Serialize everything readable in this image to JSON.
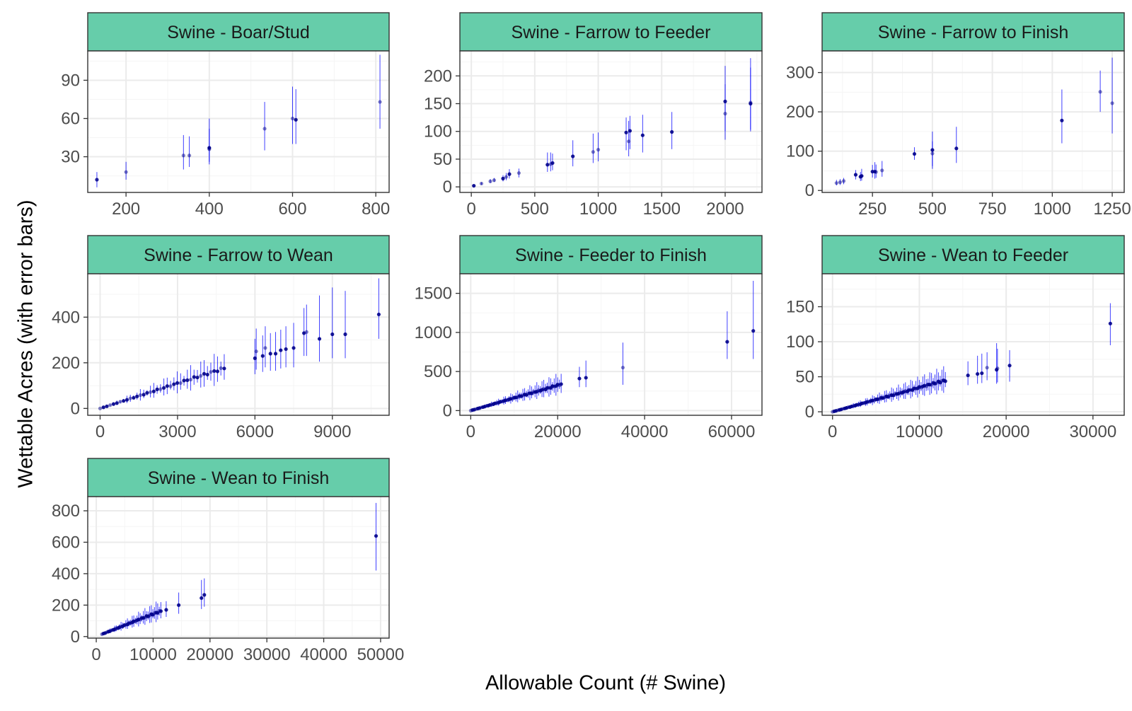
{
  "figure": {
    "x_title": "Allowable Count (# Swine)",
    "y_title": "Wettable Acres (with error bars)"
  },
  "colors": {
    "strip_fill": "#66CDAA",
    "point": "#00008B",
    "errorbar": "#0000FF",
    "panel_border": "#333333",
    "grid_major": "#EBEBEB",
    "grid_minor": "#F5F5F5",
    "tick_text": "#4D4D4D"
  },
  "chart_data": [
    {
      "type": "scatter",
      "title": "Swine - Boar/Stud",
      "xlim": [
        108,
        832
      ],
      "ylim": [
        2,
        113
      ],
      "xticks": [
        200,
        400,
        600,
        800
      ],
      "xtick_labels": [
        "200",
        "400",
        "600",
        "800"
      ],
      "yticks": [
        30,
        60,
        90
      ],
      "ytick_labels": [
        "30",
        "60",
        "90"
      ],
      "points": [
        {
          "x": 130,
          "y": 12,
          "lo": 6,
          "hi": 18,
          "a": 0.85
        },
        {
          "x": 200,
          "y": 18,
          "lo": 12,
          "hi": 26,
          "a": 0.5
        },
        {
          "x": 338,
          "y": 31,
          "lo": 20,
          "hi": 47,
          "a": 0.5
        },
        {
          "x": 352,
          "y": 31,
          "lo": 22,
          "hi": 46,
          "a": 0.5
        },
        {
          "x": 400,
          "y": 37,
          "lo": 24,
          "hi": 60,
          "a": 0.95
        },
        {
          "x": 400,
          "y": 36,
          "lo": 26,
          "hi": 52,
          "a": 0.6
        },
        {
          "x": 533,
          "y": 52,
          "lo": 35,
          "hi": 73,
          "a": 0.5
        },
        {
          "x": 600,
          "y": 60,
          "lo": 40,
          "hi": 85,
          "a": 0.5
        },
        {
          "x": 608,
          "y": 59,
          "lo": 40,
          "hi": 83,
          "a": 0.9
        },
        {
          "x": 810,
          "y": 73,
          "lo": 52,
          "hi": 110,
          "a": 0.5
        }
      ]
    },
    {
      "type": "scatter",
      "title": "Swine - Farrow to Feeder",
      "xlim": [
        -90,
        2290
      ],
      "ylim": [
        -10,
        245
      ],
      "xticks": [
        0,
        500,
        1000,
        1500,
        2000
      ],
      "xtick_labels": [
        "0",
        "500",
        "1000",
        "1500",
        "2000"
      ],
      "yticks": [
        0,
        50,
        100,
        150,
        200
      ],
      "ytick_labels": [
        "0",
        "50",
        "100",
        "150",
        "200"
      ],
      "points": [
        {
          "x": 20,
          "y": 2,
          "lo": 0,
          "hi": 4,
          "a": 0.9
        },
        {
          "x": 80,
          "y": 6,
          "lo": 4,
          "hi": 8,
          "a": 0.5
        },
        {
          "x": 150,
          "y": 10,
          "lo": 7,
          "hi": 14,
          "a": 0.5
        },
        {
          "x": 180,
          "y": 12,
          "lo": 9,
          "hi": 16,
          "a": 0.5
        },
        {
          "x": 250,
          "y": 15,
          "lo": 10,
          "hi": 21,
          "a": 0.9
        },
        {
          "x": 275,
          "y": 18,
          "lo": 12,
          "hi": 25,
          "a": 0.5
        },
        {
          "x": 300,
          "y": 23,
          "lo": 15,
          "hi": 32,
          "a": 0.9
        },
        {
          "x": 375,
          "y": 25,
          "lo": 17,
          "hi": 33,
          "a": 0.5
        },
        {
          "x": 600,
          "y": 40,
          "lo": 27,
          "hi": 62,
          "a": 0.9
        },
        {
          "x": 625,
          "y": 41,
          "lo": 28,
          "hi": 62,
          "a": 0.5
        },
        {
          "x": 640,
          "y": 43,
          "lo": 30,
          "hi": 60,
          "a": 0.9
        },
        {
          "x": 800,
          "y": 55,
          "lo": 37,
          "hi": 84,
          "a": 0.9
        },
        {
          "x": 960,
          "y": 63,
          "lo": 43,
          "hi": 96,
          "a": 0.5
        },
        {
          "x": 1000,
          "y": 67,
          "lo": 46,
          "hi": 98,
          "a": 0.5
        },
        {
          "x": 1220,
          "y": 98,
          "lo": 66,
          "hi": 125,
          "a": 0.9
        },
        {
          "x": 1240,
          "y": 82,
          "lo": 55,
          "hi": 119,
          "a": 0.5
        },
        {
          "x": 1250,
          "y": 101,
          "lo": 68,
          "hi": 128,
          "a": 0.9
        },
        {
          "x": 1350,
          "y": 93,
          "lo": 62,
          "hi": 130,
          "a": 0.9
        },
        {
          "x": 1580,
          "y": 99,
          "lo": 68,
          "hi": 135,
          "a": 0.9
        },
        {
          "x": 2000,
          "y": 132,
          "lo": 85,
          "hi": 185,
          "a": 0.5
        },
        {
          "x": 2000,
          "y": 154,
          "lo": 100,
          "hi": 218,
          "a": 0.9
        },
        {
          "x": 2200,
          "y": 150,
          "lo": 100,
          "hi": 232,
          "a": 0.9
        },
        {
          "x": 2200,
          "y": 152,
          "lo": 103,
          "hi": 215,
          "a": 0.5
        }
      ]
    },
    {
      "type": "scatter",
      "title": "Swine - Farrow to Finish",
      "xlim": [
        40,
        1300
      ],
      "ylim": [
        -5,
        355
      ],
      "xticks": [
        250,
        500,
        750,
        1000,
        1250
      ],
      "xtick_labels": [
        "250",
        "500",
        "750",
        "1000",
        "1250"
      ],
      "yticks": [
        0,
        100,
        200,
        300
      ],
      "ytick_labels": [
        "0",
        "100",
        "200",
        "300"
      ],
      "points": [
        {
          "x": 100,
          "y": 19,
          "lo": 13,
          "hi": 27,
          "a": 0.5
        },
        {
          "x": 115,
          "y": 21,
          "lo": 14,
          "hi": 29,
          "a": 0.5
        },
        {
          "x": 130,
          "y": 24,
          "lo": 16,
          "hi": 32,
          "a": 0.5
        },
        {
          "x": 180,
          "y": 40,
          "lo": 28,
          "hi": 52,
          "a": 0.9
        },
        {
          "x": 200,
          "y": 35,
          "lo": 24,
          "hi": 47,
          "a": 0.9
        },
        {
          "x": 205,
          "y": 37,
          "lo": 25,
          "hi": 55,
          "a": 0.9
        },
        {
          "x": 250,
          "y": 48,
          "lo": 33,
          "hi": 65,
          "a": 0.9
        },
        {
          "x": 260,
          "y": 48,
          "lo": 30,
          "hi": 72,
          "a": 0.9
        },
        {
          "x": 265,
          "y": 47,
          "lo": 32,
          "hi": 66,
          "a": 0.5
        },
        {
          "x": 290,
          "y": 51,
          "lo": 35,
          "hi": 75,
          "a": 0.5
        },
        {
          "x": 425,
          "y": 93,
          "lo": 78,
          "hi": 110,
          "a": 0.9
        },
        {
          "x": 500,
          "y": 103,
          "lo": 62,
          "hi": 150,
          "a": 0.9
        },
        {
          "x": 500,
          "y": 94,
          "lo": 55,
          "hi": 125,
          "a": 0.5
        },
        {
          "x": 600,
          "y": 107,
          "lo": 70,
          "hi": 162,
          "a": 0.9
        },
        {
          "x": 1040,
          "y": 178,
          "lo": 120,
          "hi": 257,
          "a": 0.9
        },
        {
          "x": 1200,
          "y": 251,
          "lo": 200,
          "hi": 305,
          "a": 0.5
        },
        {
          "x": 1250,
          "y": 222,
          "lo": 145,
          "hi": 338,
          "a": 0.5
        }
      ]
    },
    {
      "type": "scatter",
      "title": "Swine - Farrow to Wean",
      "xlim": [
        -480,
        11200
      ],
      "ylim": [
        -30,
        590
      ],
      "xticks": [
        0,
        3000,
        6000,
        9000
      ],
      "xtick_labels": [
        "0",
        "3000",
        "6000",
        "9000"
      ],
      "yticks": [
        0,
        200,
        400
      ],
      "ytick_labels": [
        "0",
        "200",
        "400"
      ],
      "trend": {
        "x0": 0,
        "x1": 4900,
        "y0": 0,
        "y1": 180,
        "step": 130
      },
      "points": [
        {
          "x": 6000,
          "y": 220,
          "lo": 150,
          "hi": 305,
          "a": 0.9
        },
        {
          "x": 6050,
          "y": 250,
          "lo": 170,
          "hi": 350,
          "a": 0.5
        },
        {
          "x": 6300,
          "y": 230,
          "lo": 160,
          "hi": 320,
          "a": 0.9
        },
        {
          "x": 6400,
          "y": 265,
          "lo": 180,
          "hi": 360,
          "a": 0.5
        },
        {
          "x": 6600,
          "y": 240,
          "lo": 165,
          "hi": 330,
          "a": 0.9
        },
        {
          "x": 6800,
          "y": 240,
          "lo": 165,
          "hi": 335,
          "a": 0.9
        },
        {
          "x": 7000,
          "y": 255,
          "lo": 175,
          "hi": 345,
          "a": 0.9
        },
        {
          "x": 7200,
          "y": 260,
          "lo": 180,
          "hi": 360,
          "a": 0.9
        },
        {
          "x": 7500,
          "y": 265,
          "lo": 180,
          "hi": 375,
          "a": 0.9
        },
        {
          "x": 7900,
          "y": 330,
          "lo": 230,
          "hi": 440,
          "a": 0.9
        },
        {
          "x": 8000,
          "y": 335,
          "lo": 230,
          "hi": 455,
          "a": 0.5
        },
        {
          "x": 8500,
          "y": 305,
          "lo": 205,
          "hi": 495,
          "a": 0.9
        },
        {
          "x": 9000,
          "y": 325,
          "lo": 220,
          "hi": 530,
          "a": 0.9
        },
        {
          "x": 9500,
          "y": 325,
          "lo": 220,
          "hi": 515,
          "a": 0.9
        },
        {
          "x": 10800,
          "y": 412,
          "lo": 305,
          "hi": 570,
          "a": 0.9
        }
      ]
    },
    {
      "type": "scatter",
      "title": "Swine - Feeder to Finish",
      "xlim": [
        -2500,
        67000
      ],
      "ylim": [
        -60,
        1750
      ],
      "xticks": [
        0,
        20000,
        40000,
        60000
      ],
      "xtick_labels": [
        "0",
        "20000",
        "40000",
        "60000"
      ],
      "yticks": [
        0,
        500,
        1000,
        1500
      ],
      "ytick_labels": [
        "0",
        "500",
        "1000",
        "1500"
      ],
      "trend": {
        "x0": 0,
        "x1": 21000,
        "y0": 0,
        "y1": 340,
        "step": 400
      },
      "points": [
        {
          "x": 25000,
          "y": 410,
          "lo": 300,
          "hi": 560,
          "a": 0.9
        },
        {
          "x": 26500,
          "y": 420,
          "lo": 300,
          "hi": 640,
          "a": 0.9
        },
        {
          "x": 35000,
          "y": 550,
          "lo": 330,
          "hi": 870,
          "a": 0.5
        },
        {
          "x": 59000,
          "y": 880,
          "lo": 660,
          "hi": 1270,
          "a": 0.9
        },
        {
          "x": 65000,
          "y": 1020,
          "lo": 660,
          "hi": 1660,
          "a": 0.9
        }
      ]
    },
    {
      "type": "scatter",
      "title": "Swine - Wean to Feeder",
      "xlim": [
        -1200,
        33600
      ],
      "ylim": [
        -5,
        197
      ],
      "xticks": [
        0,
        10000,
        20000,
        30000
      ],
      "xtick_labels": [
        "0",
        "10000",
        "20000",
        "30000"
      ],
      "yticks": [
        0,
        50,
        100,
        150
      ],
      "ytick_labels": [
        "0",
        "50",
        "100",
        "150"
      ],
      "trend": {
        "x0": 0,
        "x1": 13000,
        "y0": 0,
        "y1": 45,
        "step": 200
      },
      "points": [
        {
          "x": 15600,
          "y": 52,
          "lo": 38,
          "hi": 72,
          "a": 0.9
        },
        {
          "x": 16700,
          "y": 54,
          "lo": 40,
          "hi": 80,
          "a": 0.9
        },
        {
          "x": 17200,
          "y": 55,
          "lo": 41,
          "hi": 83,
          "a": 0.9
        },
        {
          "x": 17800,
          "y": 63,
          "lo": 45,
          "hi": 85,
          "a": 0.5
        },
        {
          "x": 18900,
          "y": 60,
          "lo": 40,
          "hi": 98,
          "a": 0.9
        },
        {
          "x": 19000,
          "y": 62,
          "lo": 42,
          "hi": 90,
          "a": 0.5
        },
        {
          "x": 20400,
          "y": 66,
          "lo": 43,
          "hi": 88,
          "a": 0.9
        },
        {
          "x": 32000,
          "y": 126,
          "lo": 95,
          "hi": 155,
          "a": 0.9
        }
      ]
    },
    {
      "type": "scatter",
      "title": "Swine - Wean to Finish",
      "xlim": [
        -1500,
        51500
      ],
      "ylim": [
        -10,
        890
      ],
      "xticks": [
        0,
        10000,
        20000,
        30000,
        40000,
        50000
      ],
      "xtick_labels": [
        "0",
        "10000",
        "20000",
        "30000",
        "40000",
        "50000"
      ],
      "yticks": [
        0,
        200,
        400,
        600,
        800
      ],
      "ytick_labels": [
        "0",
        "200",
        "400",
        "600",
        "800"
      ],
      "trend": {
        "x0": 1000,
        "x1": 11500,
        "y0": 15,
        "y1": 165,
        "step": 280
      },
      "points": [
        {
          "x": 12300,
          "y": 170,
          "lo": 125,
          "hi": 225,
          "a": 0.9
        },
        {
          "x": 14500,
          "y": 200,
          "lo": 145,
          "hi": 280,
          "a": 0.9
        },
        {
          "x": 18500,
          "y": 245,
          "lo": 175,
          "hi": 360,
          "a": 0.9
        },
        {
          "x": 19000,
          "y": 265,
          "lo": 190,
          "hi": 370,
          "a": 0.9
        },
        {
          "x": 49200,
          "y": 640,
          "lo": 420,
          "hi": 850,
          "a": 0.9
        }
      ]
    }
  ]
}
